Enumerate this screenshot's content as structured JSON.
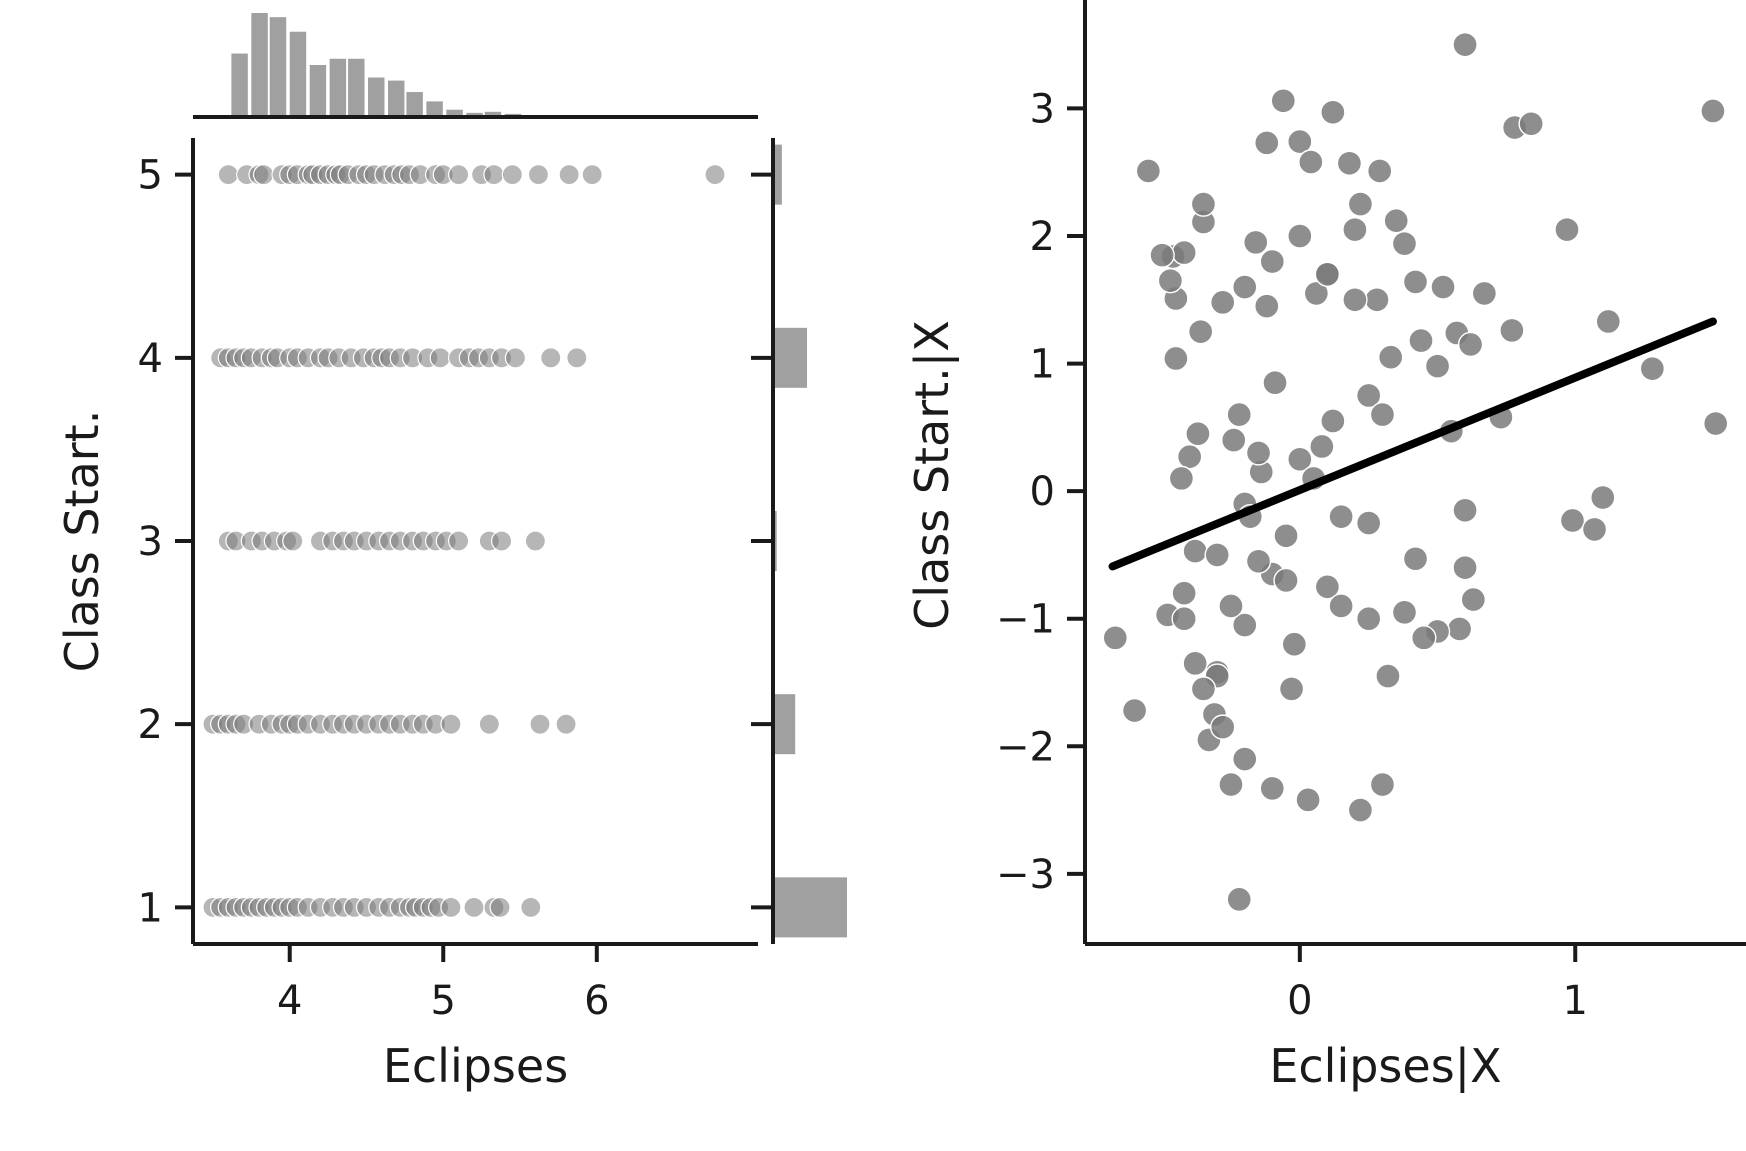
{
  "colors": {
    "axis": "#1a1a1a",
    "points": "#7a7a7a",
    "hist": "#a0a0a0",
    "fit_line": "#000000",
    "background": "#ffffff"
  },
  "chart_data": [
    {
      "type": "scatter",
      "panel": "left-joint",
      "xlabel": "Eclipses",
      "ylabel": "Class Start.",
      "xticks": [
        4,
        5,
        6
      ],
      "yticks": [
        1,
        2,
        3,
        4,
        5
      ],
      "xlim": [
        3.37,
        7.05
      ],
      "ylim": [
        0.8,
        5.2
      ],
      "grid": false,
      "series": [
        {
          "y": 5,
          "x": [
            3.6,
            3.72,
            3.8,
            3.83,
            3.95,
            4.0,
            4.05,
            4.12,
            4.15,
            4.2,
            4.25,
            4.3,
            4.33,
            4.38,
            4.45,
            4.5,
            4.55,
            4.62,
            4.68,
            4.73,
            4.78,
            4.85,
            4.95,
            5.0,
            5.1,
            5.25,
            5.33,
            5.45,
            5.62,
            5.82,
            5.97,
            6.77
          ]
        },
        {
          "y": 4,
          "x": [
            3.55,
            3.6,
            3.65,
            3.7,
            3.75,
            3.82,
            3.88,
            3.92,
            4.0,
            4.05,
            4.12,
            4.2,
            4.25,
            4.32,
            4.4,
            4.48,
            4.55,
            4.6,
            4.65,
            4.72,
            4.8,
            4.9,
            4.98,
            5.1,
            5.17,
            5.23,
            5.3,
            5.38,
            5.47,
            5.7,
            5.87
          ]
        },
        {
          "y": 3,
          "x": [
            3.6,
            3.65,
            3.75,
            3.82,
            3.9,
            3.98,
            4.02,
            4.2,
            4.28,
            4.35,
            4.42,
            4.5,
            4.58,
            4.65,
            4.72,
            4.8,
            4.87,
            4.95,
            5.02,
            5.1,
            5.3,
            5.38,
            5.6
          ]
        },
        {
          "y": 2,
          "x": [
            3.5,
            3.55,
            3.6,
            3.65,
            3.7,
            3.8,
            3.88,
            3.95,
            4.0,
            4.05,
            4.12,
            4.2,
            4.28,
            4.35,
            4.42,
            4.5,
            4.58,
            4.65,
            4.72,
            4.8,
            4.87,
            4.95,
            5.05,
            5.3,
            5.63,
            5.8
          ]
        },
        {
          "y": 1,
          "x": [
            3.5,
            3.55,
            3.6,
            3.65,
            3.7,
            3.75,
            3.8,
            3.85,
            3.9,
            3.95,
            4.0,
            4.05,
            4.12,
            4.2,
            4.28,
            4.35,
            4.42,
            4.5,
            4.58,
            4.65,
            4.72,
            4.78,
            4.82,
            4.87,
            4.92,
            4.97,
            5.05,
            5.2,
            5.33,
            5.37,
            5.57
          ]
        }
      ]
    },
    {
      "type": "bar",
      "panel": "top-marginal-histogram",
      "bin_width": 0.1267,
      "bin_starts": [
        3.62,
        3.75,
        3.87,
        4.0,
        4.13,
        4.26,
        4.38,
        4.51,
        4.64,
        4.76,
        4.89,
        5.02,
        5.15,
        5.27,
        5.4
      ],
      "values": [
        0.61,
        1.0,
        0.96,
        0.82,
        0.5,
        0.56,
        0.56,
        0.38,
        0.35,
        0.24,
        0.15,
        0.07,
        0.04,
        0.05,
        0.03
      ]
    },
    {
      "type": "bar",
      "panel": "right-marginal-histogram",
      "orientation": "horizontal",
      "categories": [
        1,
        2,
        3,
        4,
        5
      ],
      "values": [
        1.0,
        0.3,
        0.05,
        0.46,
        0.12
      ]
    },
    {
      "type": "scatter",
      "panel": "right-partial-regression",
      "xlabel": "Eclipses|X",
      "ylabel": "Class Start.|X",
      "xticks": [
        0,
        1
      ],
      "xtick_labels": [
        "0",
        "1"
      ],
      "yticks": [
        -3,
        -2,
        -1,
        0,
        1,
        2,
        3
      ],
      "ytick_labels": [
        "−3",
        "−2",
        "−1",
        "0",
        "1",
        "2",
        "3"
      ],
      "xlim": [
        -0.78,
        1.62
      ],
      "ylim": [
        -3.55,
        3.85
      ],
      "grid": false,
      "x": [
        -0.67,
        -0.6,
        -0.48,
        -0.46,
        -0.42,
        -0.42,
        -0.38,
        -0.35,
        -0.35,
        -0.31,
        -0.28,
        -0.22,
        -0.2,
        -0.16,
        -0.12,
        -0.06,
        0.0,
        0.04,
        0.12,
        0.18,
        0.29,
        0.35,
        0.38,
        0.42,
        0.44,
        0.5,
        0.52,
        0.57,
        0.6,
        0.62,
        0.67,
        0.73,
        0.77,
        0.78,
        0.84,
        0.97,
        0.99,
        1.07,
        1.12,
        1.1,
        1.28,
        1.5,
        1.51,
        -0.55,
        -0.5,
        -0.45,
        -0.47,
        -0.45,
        -0.4,
        -0.37,
        -0.3,
        -0.25,
        -0.1,
        0.03,
        0.22,
        0.3,
        0.32,
        0.42,
        0.55,
        0.6,
        0.6,
        0.63,
        0.58,
        0.5,
        0.45,
        0.38,
        -0.24,
        -0.2,
        -0.14,
        0.0,
        0.12,
        0.25,
        -0.1,
        -0.05,
        -0.2,
        -0.3,
        -0.33,
        -0.28,
        -0.35,
        -0.38,
        -0.42,
        -0.43,
        -0.36,
        0.1,
        0.2,
        0.22,
        0.28,
        0.33,
        -0.12,
        0.06,
        -0.09,
        0.1,
        -0.02,
        -0.15,
        0.15,
        -0.22,
        0.25,
        -0.18,
        0.08,
        -0.03
      ],
      "y": [
        -1.15,
        -1.72,
        -0.97,
        1.84,
        1.87,
        -1.0,
        -0.47,
        2.11,
        2.25,
        -1.75,
        1.48,
        -3.2,
        -2.1,
        1.95,
        2.73,
        3.06,
        2.74,
        2.58,
        2.97,
        2.57,
        2.51,
        2.12,
        1.94,
        1.64,
        1.18,
        0.98,
        1.6,
        1.24,
        3.5,
        1.15,
        1.55,
        0.58,
        1.26,
        2.85,
        2.88,
        2.05,
        -0.23,
        -0.3,
        1.33,
        -0.05,
        0.96,
        2.98,
        0.53,
        2.51,
        1.85,
        1.51,
        1.65,
        1.04,
        0.27,
        0.45,
        -1.42,
        -2.3,
        -2.33,
        -2.42,
        -2.5,
        -2.3,
        -1.45,
        -0.53,
        0.47,
        -0.15,
        -0.6,
        -0.85,
        -1.08,
        -1.1,
        -1.15,
        -0.95,
        0.4,
        -0.1,
        0.15,
        0.25,
        0.55,
        0.75,
        -0.65,
        -0.35,
        -1.05,
        -1.45,
        -1.95,
        -1.85,
        -1.55,
        -1.35,
        -0.8,
        0.1,
        1.25,
        1.7,
        2.05,
        2.25,
        1.5,
        1.05,
        1.45,
        1.55,
        0.85,
        -0.75,
        -1.2,
        -0.55,
        -0.9,
        0.6,
        -0.25,
        -0.2,
        0.35,
        -1.55
      ],
      "cluster_note_points": {
        "x": [
          -0.2,
          -0.1,
          0.0,
          0.1,
          0.2,
          -0.15,
          0.05,
          0.15,
          -0.05,
          -0.25,
          0.25,
          -0.3,
          0.3
        ],
        "y": [
          1.6,
          1.8,
          2.0,
          1.7,
          1.5,
          0.3,
          0.1,
          -0.2,
          -0.7,
          -0.9,
          -1.0,
          -0.5,
          0.6
        ]
      },
      "fit_line": {
        "x": [
          -0.68,
          1.5
        ],
        "y": [
          -0.59,
          1.33
        ]
      }
    }
  ]
}
